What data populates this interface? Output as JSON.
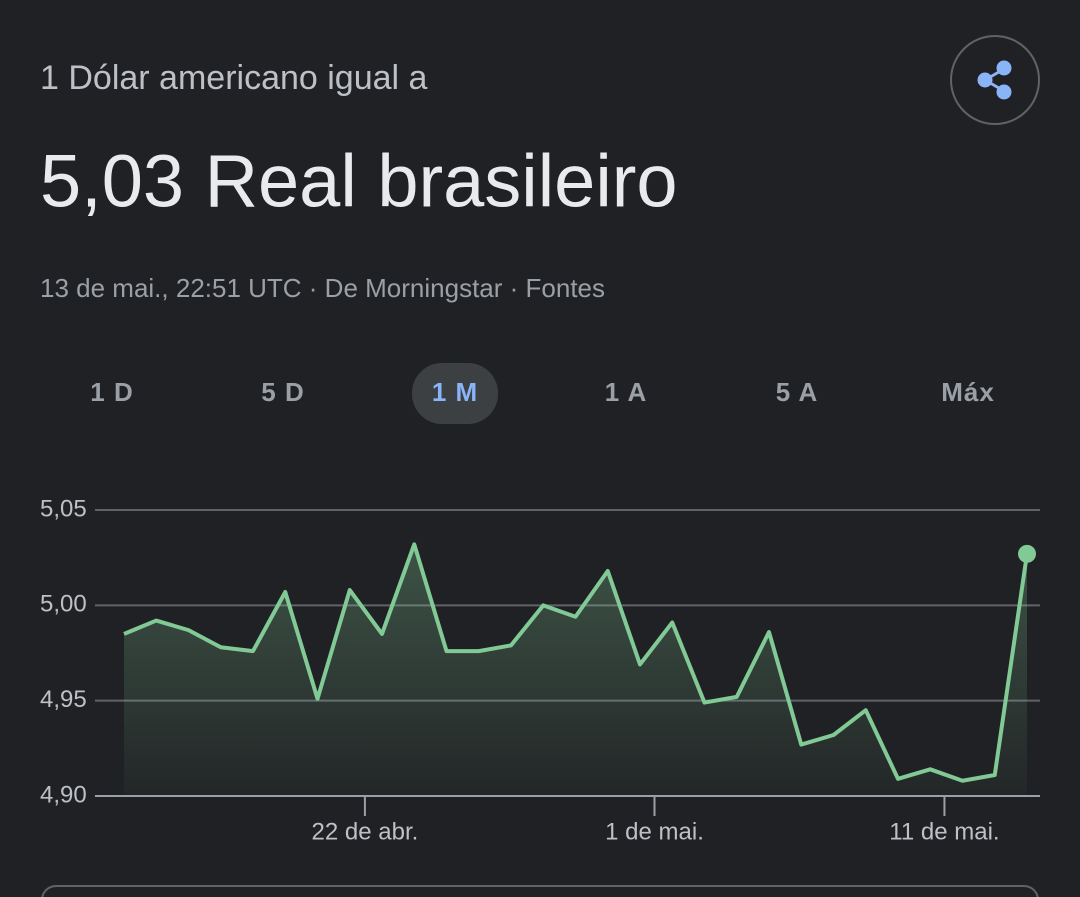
{
  "header": {
    "subtitle": "1 Dólar americano igual a",
    "title": "5,03 Real brasileiro",
    "meta": "13 de mai., 22:51 UTC · De Morningstar · Fontes"
  },
  "tabs": {
    "items": [
      "1 D",
      "5 D",
      "1 M",
      "1 A",
      "5 A",
      "Máx"
    ],
    "selected": 2
  },
  "chart_data": {
    "type": "area",
    "color": "#81c995",
    "categories": [
      null,
      null,
      null,
      null,
      null,
      null,
      null,
      null,
      null,
      null,
      null,
      null,
      null,
      null,
      null,
      null,
      null,
      null,
      null,
      null,
      null,
      null,
      null,
      null,
      null,
      null,
      null,
      null,
      null
    ],
    "values": [
      4.985,
      4.992,
      4.987,
      4.978,
      4.976,
      5.007,
      4.951,
      5.008,
      4.985,
      5.032,
      4.976,
      4.976,
      4.979,
      5.0,
      4.994,
      5.018,
      4.969,
      4.991,
      4.949,
      4.952,
      4.986,
      4.927,
      4.932,
      4.945,
      4.909,
      4.914,
      4.908,
      4.911,
      5.027
    ],
    "xlim": [
      0,
      28
    ],
    "xticks": [
      {
        "value": 7.47,
        "label": "22 de abr."
      },
      {
        "value": 16.45,
        "label": "1 de mai."
      },
      {
        "value": 25.44,
        "label": "11 de mai."
      }
    ],
    "ylim": [
      4.9,
      5.05
    ],
    "yticks": [
      {
        "value": 4.9,
        "label": "4,90"
      },
      {
        "value": 4.95,
        "label": "4,95"
      },
      {
        "value": 5.0,
        "label": "5,00"
      },
      {
        "value": 5.05,
        "label": "5,05"
      }
    ],
    "grid": true
  }
}
